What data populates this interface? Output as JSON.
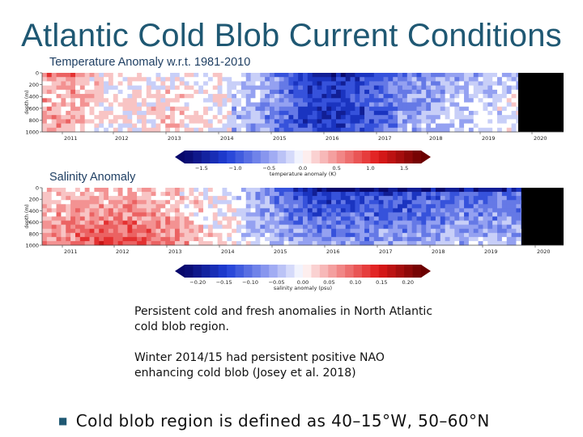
{
  "slide": {
    "title": "Atlantic Cold Blob Current Conditions",
    "temp_label": "Temperature Anomaly w.r.t. 1981-2010",
    "sal_label": "Salinity Anomaly",
    "note1": "Persistent cold and fresh anomalies in North Atlantic cold blob region.",
    "note2": "Winter 2014/15 had persistent positive NAO enhancing cold blob (Josey et al. 2018)",
    "bullet": "Cold blob region is defined as 40–15°W, 50–60°N"
  },
  "colors": {
    "title": "#1f5873",
    "label": "#1f3f63",
    "mask": "#000000"
  },
  "chart_data": [
    {
      "type": "heatmap",
      "ylabel": "depth (m)",
      "y_ticks": [
        "0",
        "200",
        "400",
        "600",
        "800",
        "1000"
      ],
      "x_ticks": [
        "2011",
        "2012",
        "2013",
        "2014",
        "2015",
        "2016",
        "2017",
        "2018",
        "2019",
        "2020"
      ],
      "ylim": [
        1000,
        0
      ],
      "colorbar": {
        "label": "temperature anomaly (K)",
        "ticks": [
          "−1.5",
          "−1.0",
          "−0.5",
          "0.0",
          "0.5",
          "1.0",
          "1.5"
        ],
        "range": [
          -1.75,
          1.75
        ]
      }
    },
    {
      "type": "heatmap",
      "ylabel": "depth (m)",
      "y_ticks": [
        "0",
        "200",
        "400",
        "600",
        "800",
        "1000"
      ],
      "x_ticks": [
        "2011",
        "2012",
        "2013",
        "2014",
        "2015",
        "2016",
        "2017",
        "2018",
        "2019",
        "2020"
      ],
      "ylim": [
        1000,
        0
      ],
      "colorbar": {
        "label": "salinity anomaly (psu)",
        "ticks": [
          "−0.20",
          "−0.15",
          "−0.10",
          "−0.05",
          "0.00",
          "0.05",
          "0.10",
          "0.15",
          "0.20"
        ],
        "range": [
          -0.225,
          0.225
        ]
      }
    }
  ]
}
